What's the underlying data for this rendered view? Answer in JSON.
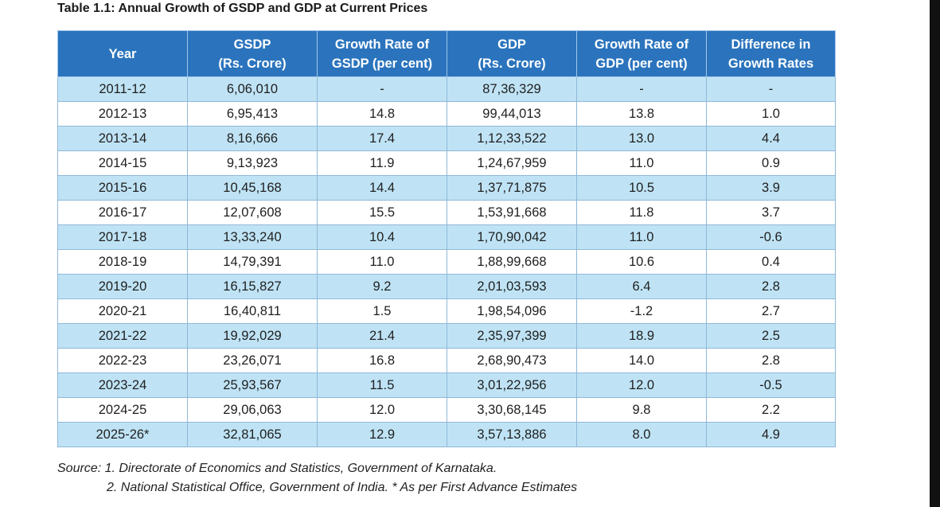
{
  "title": "Table 1.1: Annual Growth of GSDP and GDP at Current Prices",
  "headers": [
    [
      "Year"
    ],
    [
      "GSDP",
      "(Rs. Crore)"
    ],
    [
      "Growth Rate of",
      "GSDP (per cent)"
    ],
    [
      "GDP",
      "(Rs. Crore)"
    ],
    [
      "Growth Rate of",
      "GDP (per cent)"
    ],
    [
      "Difference in",
      "Growth Rates"
    ]
  ],
  "rows": [
    [
      "2011-12",
      "6,06,010",
      "-",
      "87,36,329",
      "-",
      "-"
    ],
    [
      "2012-13",
      "6,95,413",
      "14.8",
      "99,44,013",
      "13.8",
      "1.0"
    ],
    [
      "2013-14",
      "8,16,666",
      "17.4",
      "1,12,33,522",
      "13.0",
      "4.4"
    ],
    [
      "2014-15",
      "9,13,923",
      "11.9",
      "1,24,67,959",
      "11.0",
      "0.9"
    ],
    [
      "2015-16",
      "10,45,168",
      "14.4",
      "1,37,71,875",
      "10.5",
      "3.9"
    ],
    [
      "2016-17",
      "12,07,608",
      "15.5",
      "1,53,91,668",
      "11.8",
      "3.7"
    ],
    [
      "2017-18",
      "13,33,240",
      "10.4",
      "1,70,90,042",
      "11.0",
      "-0.6"
    ],
    [
      "2018-19",
      "14,79,391",
      "11.0",
      "1,88,99,668",
      "10.6",
      "0.4"
    ],
    [
      "2019-20",
      "16,15,827",
      "9.2",
      "2,01,03,593",
      "6.4",
      "2.8"
    ],
    [
      "2020-21",
      "16,40,811",
      "1.5",
      "1,98,54,096",
      "-1.2",
      "2.7"
    ],
    [
      "2021-22",
      "19,92,029",
      "21.4",
      "2,35,97,399",
      "18.9",
      "2.5"
    ],
    [
      "2022-23",
      "23,26,071",
      "16.8",
      "2,68,90,473",
      "14.0",
      "2.8"
    ],
    [
      "2023-24",
      "25,93,567",
      "11.5",
      "3,01,22,956",
      "12.0",
      "-0.5"
    ],
    [
      "2024-25",
      "29,06,063",
      "12.0",
      "3,30,68,145",
      "9.8",
      "2.2"
    ],
    [
      "2025-26*",
      "32,81,065",
      "12.9",
      "3,57,13,886",
      "8.0",
      "4.9"
    ]
  ],
  "source": {
    "line1": "Source: 1. Directorate of Economics and Statistics, Government of Karnataka.",
    "line2": "2. National Statistical Office, Government of India. * As per First Advance Estimates"
  },
  "colors": {
    "header_bg": "#2b74bd",
    "row_alt_bg": "#bfe3f5",
    "row_bg": "#ffffff"
  }
}
